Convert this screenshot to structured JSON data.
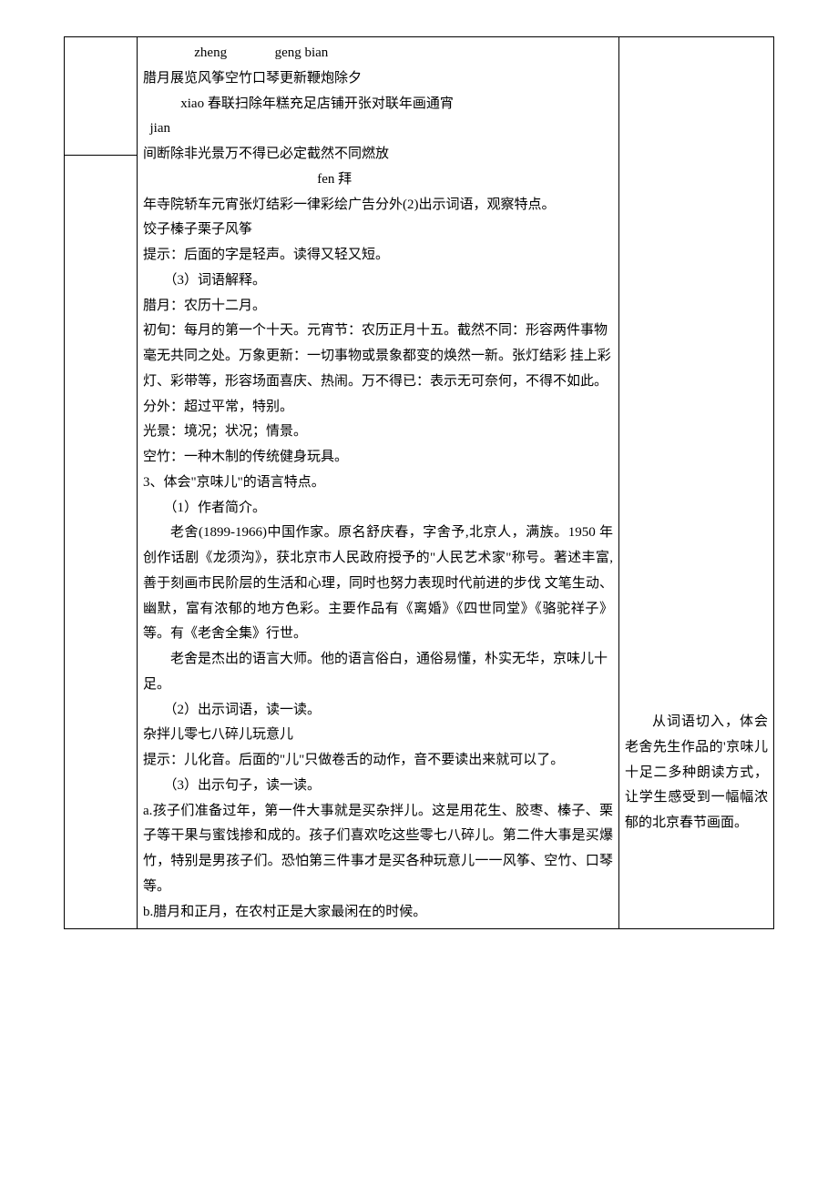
{
  "pinyin": {
    "line1": "               zheng              geng bian",
    "line2": "           xiao 春联扫除年糕充足店铺开张对联年画通宵",
    "line3": "  jian",
    "line4": "                                                   fen 拜"
  },
  "main": {
    "l1": "腊月展览风筝空竹口琴更新鞭炮除夕",
    "l2_a": "   间断除非光景万不得已必定截然不同燃放",
    "l3": "年寺院轿车元宵张灯结彩一律彩绘广告分外(2)出示词语，观察特点。",
    "l4": "饺子榛子栗子风筝",
    "l5": "提示：后面的字是轻声。读得又轻又短。",
    "l6": "（3）词语解释。",
    "l7": "腊月：农历十二月。",
    "l8": "初旬：每月的第一个十天。元宵节：农历正月十五。截然不同：形容两件事物毫无共同之处。万象更新：一切事物或景象都变的焕然一新。张灯结彩  挂上彩灯、彩带等，形容场面喜庆、热闹。万不得已：表示无可奈何，不得不如此。",
    "l9": "分外：超过平常，特别。",
    "l10": "光景：境况；状况；情景。",
    "l11": "空竹：一种木制的传统健身玩具。",
    "l12": "3、体会\"京味儿\"的语言特点。",
    "l13": "（1）作者简介。",
    "l14": "老舍(1899-1966)中国作家。原名舒庆春，字舍予,北京人，满族。1950 年创作话剧《龙须沟》，获北京市人民政府授予的\"人民艺术家\"称号。著述丰富,善于刻画市民阶层的生活和心理，同时也努力表现时代前进的步伐  文笔生动、幽默，富有浓郁的地方色彩。主要作品有《离婚》《四世同堂》《骆驼祥子》等。有《老舍全集》行世。",
    "l15": "老舍是杰出的语言大师。他的语言俗白，通俗易懂，朴实无华，京味儿十足。",
    "l16": "（2）出示词语，读一读。",
    "l17": "杂拌儿零七八碎儿玩意儿",
    "l18": "提示：儿化音。后面的\"儿\"只做卷舌的动作，音不要读出来就可以了。",
    "l19": "（3）出示句子，读一读。",
    "l20": "a.孩子们准备过年，第一件大事就是买杂拌儿。这是用花生、胶枣、榛子、栗子等干果与蜜饯掺和成的。孩子们喜欢吃这些零七八碎儿。第二件大事是买爆竹，特别是男孩子们。恐怕第三件事才是买各种玩意儿一一风筝、空竹、口琴等。",
    "l21": "b.腊月和正月，在农村正是大家最闲在的时候。"
  },
  "right": {
    "note": "从词语切入，体会老舍先生作品的'京味儿十足二多种朗读方式，让学生感受到一幅幅浓郁的北京春节画面。"
  }
}
